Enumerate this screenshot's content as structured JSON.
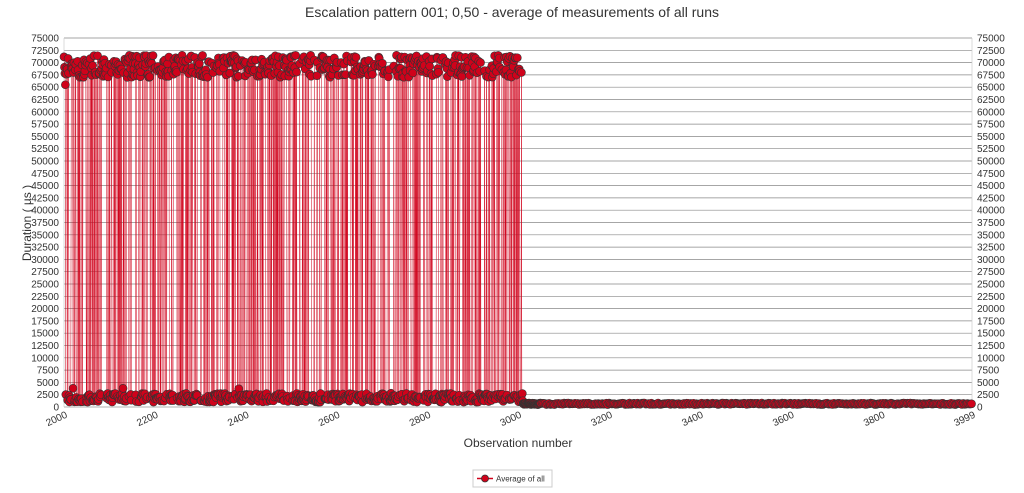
{
  "chart_data": {
    "type": "line",
    "title": "Escalation pattern 001; 0,50 - average of measurements of all runs",
    "xlabel": "Observation number",
    "ylabel": "Duration ( µs )",
    "xlim": [
      2000,
      3999
    ],
    "ylim": [
      0,
      75000
    ],
    "x_ticks": [
      "2000",
      "2200",
      "2400",
      "2600",
      "2800",
      "3000",
      "3200",
      "3400",
      "3600",
      "3800",
      "3999"
    ],
    "y_ticks": [
      "0",
      "2500",
      "5000",
      "7500",
      "10000",
      "12500",
      "15000",
      "17500",
      "20000",
      "22500",
      "25000",
      "27500",
      "30000",
      "32500",
      "35000",
      "37500",
      "40000",
      "42500",
      "45000",
      "47500",
      "50000",
      "52500",
      "55000",
      "57500",
      "60000",
      "62500",
      "65000",
      "67500",
      "70000",
      "72500",
      "75000"
    ],
    "grid": true,
    "legend_position": "bottom-center",
    "series": [
      {
        "name": "Average of all",
        "color": "#d0021b",
        "marker": "circle",
        "pattern": "from 2000 to ~3010 values alternate between a low band (~1000–3500) and a high band (~67000–71500); after ~3010 values settle near 500–800",
        "high_band": [
          67000,
          71500
        ],
        "low_band": [
          1000,
          3500
        ],
        "high_phase_x": [
          2000,
          3010
        ],
        "tail_x": [
          3010,
          3999
        ],
        "tail_values": [
          500,
          800
        ],
        "sample_outliers": [
          {
            "x": 2003,
            "y": 65500
          },
          {
            "x": 2020,
            "y": 3800
          },
          {
            "x": 2130,
            "y": 3800
          },
          {
            "x": 2385,
            "y": 3700
          },
          {
            "x": 2720,
            "y": 2800
          },
          {
            "x": 3999,
            "y": 1000
          }
        ]
      }
    ]
  }
}
